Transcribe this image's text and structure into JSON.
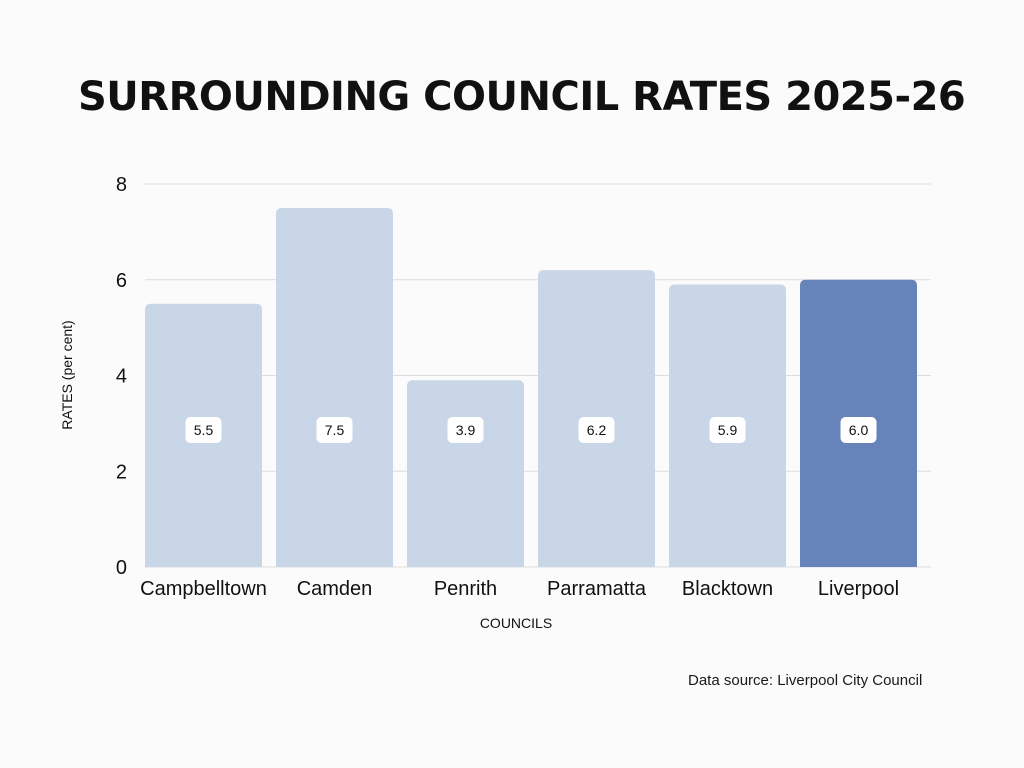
{
  "chart_data": {
    "type": "bar",
    "title": "SURROUNDING COUNCIL RATES 2025-26",
    "xlabel": "COUNCILS",
    "ylabel": "RATES (per cent)",
    "categories": [
      "Campbelltown",
      "Camden",
      "Penrith",
      "Parramatta",
      "Blacktown",
      "Liverpool"
    ],
    "values": [
      5.5,
      7.5,
      3.9,
      6.2,
      5.9,
      6.0
    ],
    "value_labels": [
      "5.5",
      "7.5",
      "3.9",
      "6.2",
      "5.9",
      "6.0"
    ],
    "highlight": "Liverpool",
    "ylim": [
      0,
      8
    ],
    "yticks": [
      0,
      2,
      4,
      6,
      8
    ],
    "grid": true,
    "legend": "none"
  },
  "colors": {
    "bar": "#c9d6e8",
    "bar_highlight": "#6684ba",
    "grid": "#dddddd",
    "text": "#111111"
  },
  "footer": {
    "source": "Data source: Liverpool City Council"
  }
}
